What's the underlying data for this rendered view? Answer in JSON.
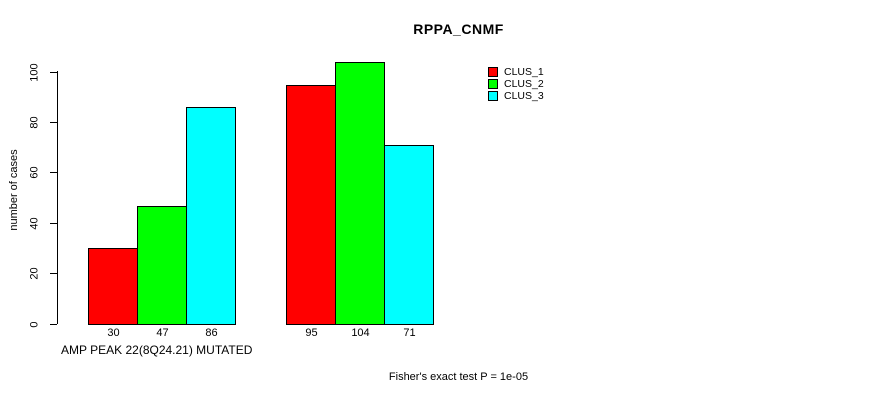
{
  "chart_data": {
    "type": "bar",
    "title": "RPPA_CNMF",
    "ylabel": "number of cases",
    "xlabel": "AMP PEAK 22(8Q24.21) MUTATED",
    "ylim": [
      0,
      100
    ],
    "yticks": [
      0,
      20,
      40,
      60,
      80,
      100
    ],
    "grid": false,
    "legend_position": "top-right",
    "series": [
      {
        "name": "CLUS_1",
        "color": "#ff0000",
        "values": [
          30,
          95
        ]
      },
      {
        "name": "CLUS_2",
        "color": "#00ff00",
        "values": [
          47,
          104
        ]
      },
      {
        "name": "CLUS_3",
        "color": "#00ffff",
        "values": [
          86,
          71
        ]
      }
    ],
    "bar_value_labels": [
      [
        30,
        47,
        86
      ],
      [
        95,
        104,
        71
      ]
    ],
    "annotation": "Fisher's exact test P = 1e-05"
  }
}
